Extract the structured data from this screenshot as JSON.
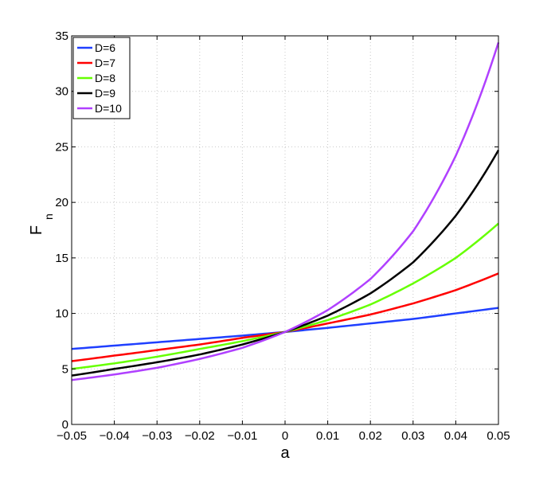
{
  "chart_data": {
    "type": "line",
    "title": "",
    "xlabel": "a",
    "ylabel": "F",
    "ylabel_subscript": "n",
    "xlim": [
      -0.05,
      0.05
    ],
    "ylim": [
      0,
      35
    ],
    "grid": true,
    "legend_placement": "top-left",
    "x_ticks": [
      -0.05,
      -0.04,
      -0.03,
      -0.02,
      -0.01,
      0,
      0.01,
      0.02,
      0.03,
      0.04,
      0.05
    ],
    "x_tick_labels": [
      "−0.05",
      "−0.04",
      "−0.03",
      "−0.02",
      "−0.01",
      "0",
      "0.01",
      "0.02",
      "0.03",
      "0.04",
      "0.05"
    ],
    "y_ticks": [
      0,
      5,
      10,
      15,
      20,
      25,
      30,
      35
    ],
    "y_tick_labels": [
      "0",
      "5",
      "10",
      "15",
      "20",
      "25",
      "30",
      "35"
    ],
    "x": [
      -0.05,
      -0.04,
      -0.03,
      -0.02,
      -0.01,
      0,
      0.01,
      0.02,
      0.03,
      0.04,
      0.05
    ],
    "series": [
      {
        "name": "D=6",
        "color": "#1f3fff",
        "values": [
          6.8,
          7.1,
          7.4,
          7.7,
          8.0,
          8.33,
          8.7,
          9.1,
          9.5,
          10.0,
          10.5
        ]
      },
      {
        "name": "D=7",
        "color": "#ff0000",
        "values": [
          5.7,
          6.2,
          6.7,
          7.2,
          7.8,
          8.33,
          9.1,
          9.9,
          10.9,
          12.1,
          13.6
        ]
      },
      {
        "name": "D=8",
        "color": "#66ff00",
        "values": [
          5.0,
          5.5,
          6.1,
          6.8,
          7.5,
          8.33,
          9.4,
          10.8,
          12.7,
          15.0,
          18.1
        ]
      },
      {
        "name": "D=9",
        "color": "#000000",
        "values": [
          4.4,
          5.0,
          5.6,
          6.3,
          7.2,
          8.33,
          9.8,
          11.8,
          14.6,
          18.8,
          24.7
        ]
      },
      {
        "name": "D=10",
        "color": "#b040ff",
        "values": [
          4.0,
          4.5,
          5.1,
          5.9,
          6.9,
          8.33,
          10.3,
          13.1,
          17.4,
          24.2,
          34.4
        ]
      }
    ]
  }
}
